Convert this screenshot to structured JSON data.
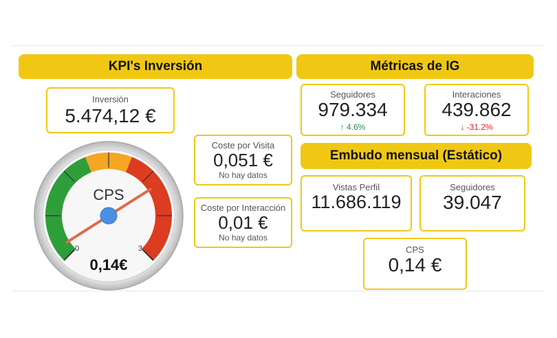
{
  "kpi": {
    "header": "KPI's Inversión",
    "inversion": {
      "label": "Inversión",
      "value": "5.474,12 €"
    },
    "coste_visita": {
      "label": "Coste por Visita",
      "value": "0,051 €",
      "note": "No hay datos"
    },
    "coste_interaccion": {
      "label": "Coste por Interacción",
      "value": "0,01 €",
      "note": "No hay datos"
    },
    "gauge": {
      "label": "CPS",
      "value": "0,14€",
      "min_label": "0",
      "max_label": "3",
      "level": 0.14,
      "max": 3
    }
  },
  "ig": {
    "header": "Métricas de IG",
    "seguidores": {
      "label": "Seguidores",
      "value": "979.334",
      "delta": "4.6%",
      "delta_dir": "up"
    },
    "interaciones": {
      "label": "Interaciones",
      "value": "439.862",
      "delta": "-31.2%",
      "delta_dir": "down"
    }
  },
  "embudo": {
    "header": "Embudo mensual (Estático)",
    "vistas": {
      "label": "Vistas Perfil",
      "value": "11.686.119"
    },
    "seguidores": {
      "label": "Seguidores",
      "value": "39.047"
    },
    "cps": {
      "label": "CPS",
      "value": "0,14 €"
    }
  },
  "colors": {
    "accent": "#f0c814",
    "gauge_green": "#2e9e3a",
    "gauge_orange": "#f5a623",
    "gauge_red": "#dc3c20",
    "needle_hub": "#4a90e2"
  }
}
